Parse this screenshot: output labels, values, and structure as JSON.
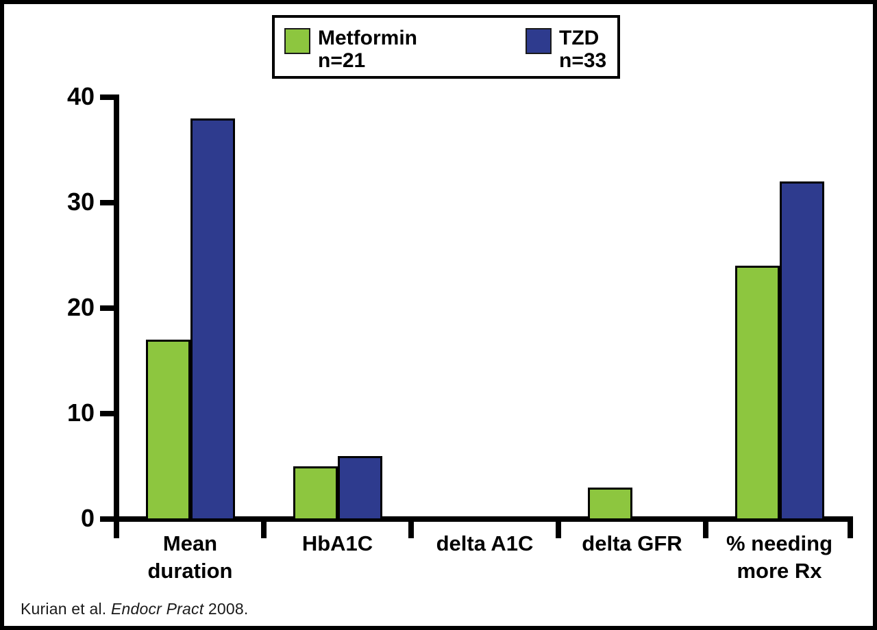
{
  "chart_data": {
    "type": "bar",
    "categories": [
      "Mean duration",
      "HbA1C",
      "delta A1C",
      "delta GFR",
      "% needing more Rx"
    ],
    "category_lines": [
      [
        "Mean",
        "duration"
      ],
      [
        "HbA1C"
      ],
      [
        "delta A1C"
      ],
      [
        "delta GFR"
      ],
      [
        "% needing",
        "more Rx"
      ]
    ],
    "series": [
      {
        "name": "Metformin",
        "n_label": "n=21",
        "color": "#8dc63f",
        "values": [
          17,
          5,
          0,
          3,
          24
        ]
      },
      {
        "name": "TZD",
        "n_label": "n=33",
        "color": "#2e3b8e",
        "values": [
          38,
          6,
          0,
          0,
          32
        ]
      }
    ],
    "title": "",
    "xlabel": "",
    "ylabel": "",
    "ylim": [
      0,
      40
    ],
    "yticks": [
      0,
      10,
      20,
      30,
      40
    ],
    "grid": false,
    "legend_position": "top-center",
    "axis_color": "#000000",
    "bar_outline_color": "#000000"
  },
  "footer": {
    "citation_prefix": "Kurian et al. ",
    "citation_journal": "Endocr Pract",
    "citation_suffix": " 2008."
  }
}
